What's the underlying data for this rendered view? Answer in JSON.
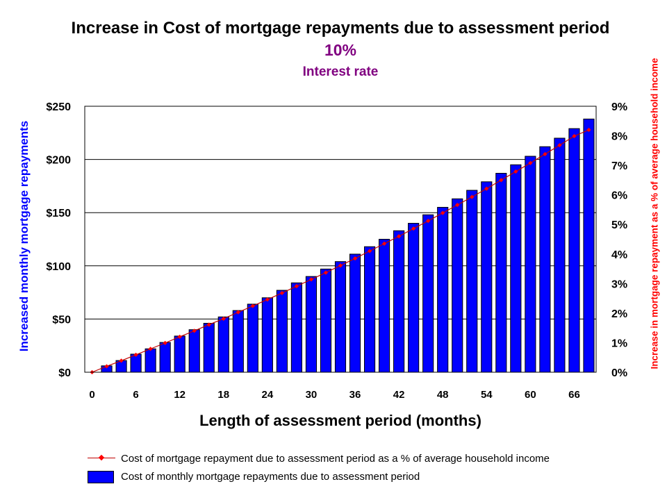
{
  "chart_data": {
    "type": "bar",
    "title": "Increase in Cost of mortgage repayments due to assessment period",
    "subtitle_value": "10%",
    "subtitle_label": "Interest rate",
    "xlabel": "Length of assessment period (months)",
    "ylabel_left": "Increased monthly mortgage repayments",
    "ylabel_right": "Increase in mortgage repayment as a % of average household income",
    "x_ticks": [
      "0",
      "6",
      "12",
      "18",
      "24",
      "30",
      "36",
      "42",
      "48",
      "54",
      "60",
      "66"
    ],
    "y_left_ticks": [
      "$0",
      "$50",
      "$100",
      "$150",
      "$200",
      "$250"
    ],
    "y_right_ticks": [
      "0%",
      "1%",
      "2%",
      "3%",
      "4%",
      "5%",
      "6%",
      "7%",
      "8%",
      "9%"
    ],
    "y_left_lim": [
      0,
      250
    ],
    "y_right_lim": [
      0,
      9
    ],
    "x": [
      0,
      2,
      4,
      6,
      8,
      10,
      12,
      14,
      16,
      18,
      20,
      22,
      24,
      26,
      28,
      30,
      32,
      34,
      36,
      38,
      40,
      42,
      44,
      46,
      48,
      50,
      52,
      54,
      56,
      58,
      60,
      62,
      64,
      66,
      68
    ],
    "series": [
      {
        "name": "Cost of monthly mortgage repayments due to assessment period",
        "kind": "bar",
        "axis": "left",
        "color": "#0000ff",
        "values": [
          0,
          6,
          11,
          17,
          22,
          28,
          34,
          40,
          46,
          52,
          58,
          64,
          70,
          77,
          84,
          90,
          97,
          104,
          111,
          118,
          125,
          133,
          140,
          148,
          155,
          163,
          171,
          179,
          187,
          195,
          203,
          212,
          220,
          229,
          238
        ]
      },
      {
        "name": "Cost of mortgage repayment due to assessment period as a % of average household income",
        "kind": "line",
        "axis": "right",
        "color": "#ff0000",
        "values": [
          0.0,
          0.2,
          0.39,
          0.59,
          0.79,
          0.99,
          1.2,
          1.4,
          1.61,
          1.81,
          2.03,
          2.24,
          2.46,
          2.68,
          2.91,
          3.14,
          3.37,
          3.61,
          3.85,
          4.1,
          4.35,
          4.6,
          4.86,
          5.12,
          5.39,
          5.66,
          5.93,
          6.21,
          6.5,
          6.79,
          7.08,
          7.38,
          7.68,
          7.99,
          8.2
        ]
      }
    ],
    "grid": "horizontal",
    "legend_position": "bottom"
  }
}
